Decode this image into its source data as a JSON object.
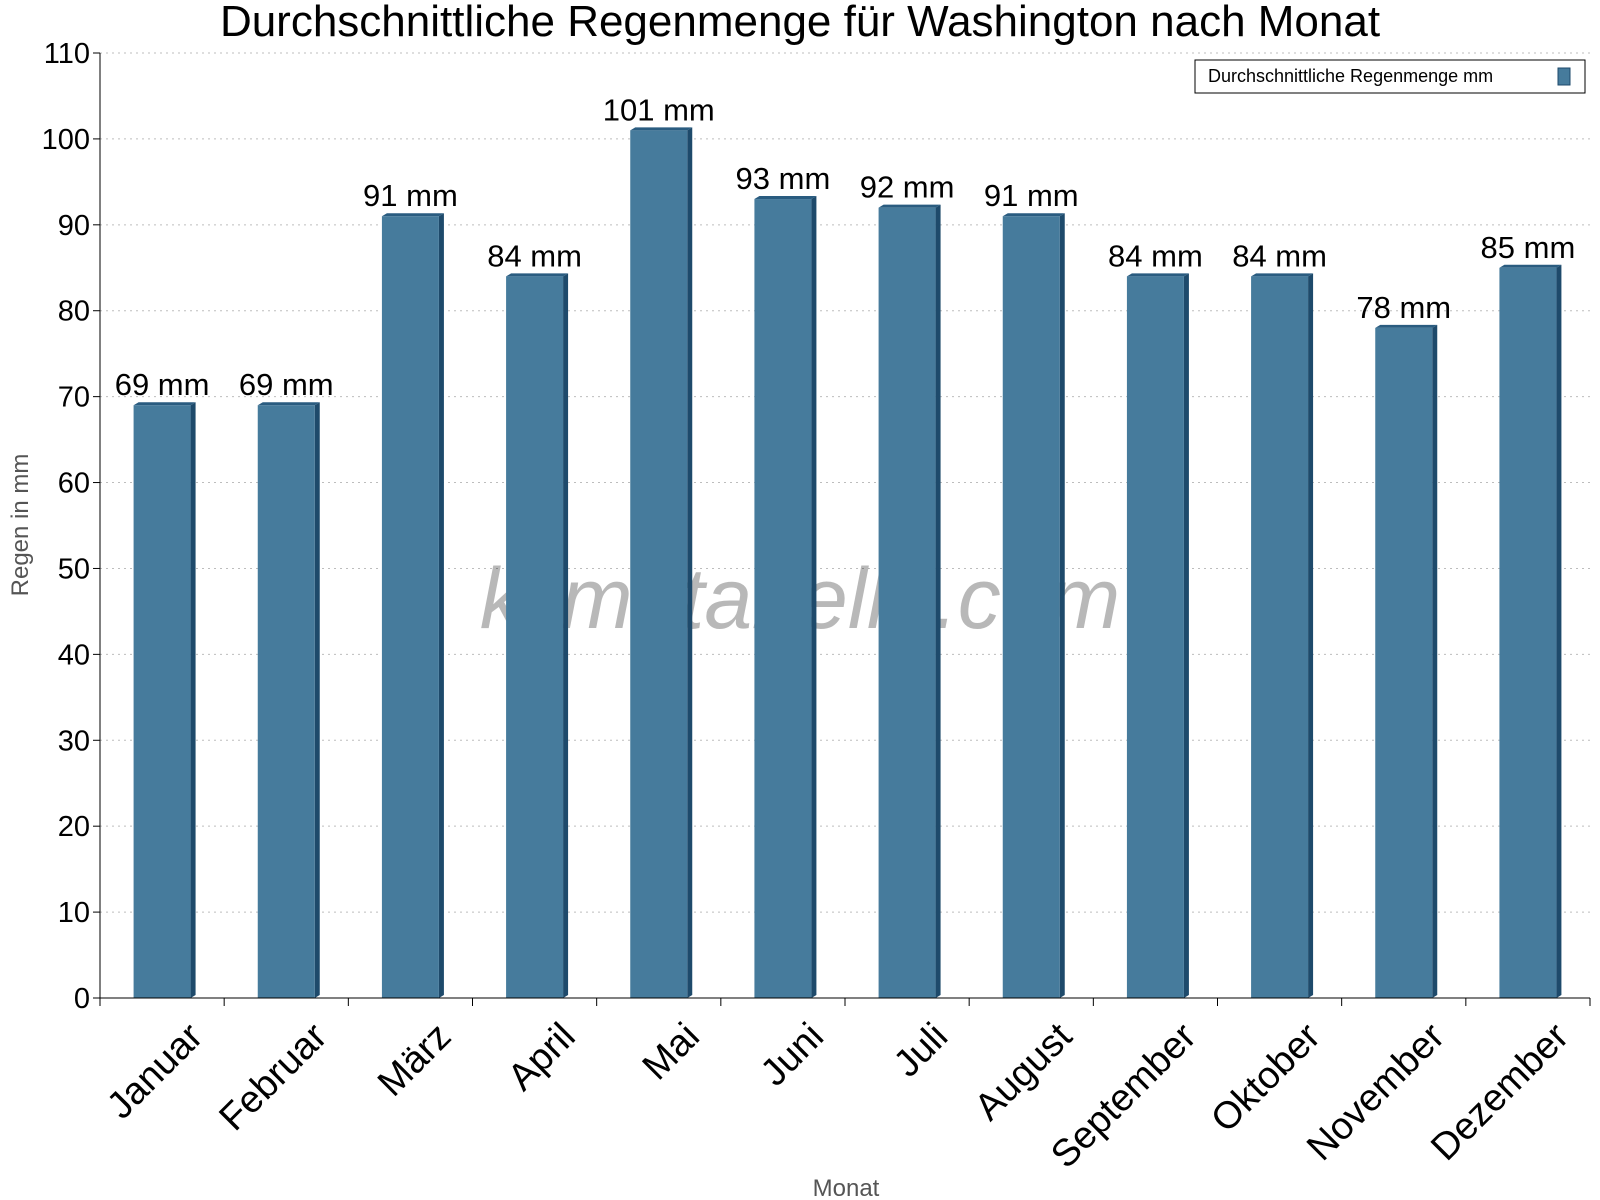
{
  "chart_data": {
    "type": "bar",
    "title": "Durchschnittliche Regenmenge für Washington nach Monat",
    "xlabel": "Monat",
    "ylabel": "Regen in mm",
    "ylim": [
      0,
      110
    ],
    "yticks": [
      0,
      10,
      20,
      30,
      40,
      50,
      60,
      70,
      80,
      90,
      100,
      110
    ],
    "grid": "horizontal dotted",
    "legend_position": "top-right",
    "categories": [
      "Januar",
      "Februar",
      "März",
      "April",
      "Mai",
      "Juni",
      "Juli",
      "August",
      "September",
      "Oktober",
      "November",
      "Dezember"
    ],
    "series": [
      {
        "name": "Durchschnittliche Regenmenge mm",
        "values": [
          69,
          69,
          91,
          84,
          101,
          93,
          92,
          91,
          84,
          84,
          78,
          85
        ],
        "labels": [
          "69 mm",
          "69 mm",
          "91 mm",
          "84 mm",
          "101 mm",
          "93 mm",
          "92 mm",
          "91 mm",
          "84 mm",
          "84 mm",
          "78 mm",
          "85 mm"
        ]
      }
    ],
    "colors": {
      "bar_face": "#467b9c",
      "bar_side": "#1e4a6b",
      "bar_top": "#2a5c80"
    }
  },
  "watermark": "klimatabelle.com"
}
